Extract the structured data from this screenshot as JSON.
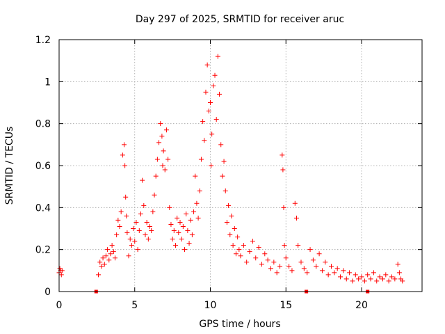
{
  "chart_data": {
    "type": "scatter",
    "title": "Day 297 of 2025, SRMTID for receiver aruc",
    "xlabel": "GPS time / hours",
    "ylabel": "SRMTID / TECUs",
    "xlim": [
      0,
      24
    ],
    "ylim": [
      0,
      1.2
    ],
    "xticks": [
      0,
      5,
      10,
      15,
      20
    ],
    "xtick_labels": [
      "0",
      "5",
      "10",
      "15",
      "20"
    ],
    "yticks": [
      0,
      0.2,
      0.4,
      0.6,
      0.8,
      1,
      1.2
    ],
    "ytick_labels": [
      "0",
      "0.2",
      "0.4",
      "0.6",
      "0.8",
      "1",
      "1.2"
    ],
    "grid": true,
    "marker": "plus",
    "color": "#ff0000",
    "series": [
      {
        "name": "SRMTID",
        "x": [
          0.0,
          0.05,
          0.1,
          0.15,
          0.2,
          2.6,
          2.7,
          2.8,
          2.9,
          3.0,
          3.1,
          3.2,
          3.3,
          3.4,
          3.5,
          3.6,
          3.7,
          3.8,
          3.9,
          4.0,
          4.1,
          4.2,
          4.3,
          4.35,
          4.4,
          4.45,
          4.5,
          4.6,
          4.7,
          4.8,
          4.9,
          5.0,
          5.1,
          5.2,
          5.3,
          5.4,
          5.5,
          5.6,
          5.7,
          5.8,
          5.9,
          6.0,
          6.1,
          6.2,
          6.3,
          6.4,
          6.5,
          6.6,
          6.7,
          6.8,
          6.85,
          6.9,
          7.0,
          7.1,
          7.2,
          7.3,
          7.4,
          7.5,
          7.6,
          7.7,
          7.8,
          7.9,
          8.0,
          8.1,
          8.2,
          8.3,
          8.4,
          8.5,
          8.6,
          8.7,
          8.8,
          8.9,
          9.0,
          9.1,
          9.2,
          9.3,
          9.4,
          9.5,
          9.6,
          9.7,
          9.8,
          9.9,
          10.0,
          10.05,
          10.1,
          10.2,
          10.3,
          10.4,
          10.5,
          10.6,
          10.7,
          10.8,
          10.9,
          11.0,
          11.1,
          11.2,
          11.3,
          11.4,
          11.5,
          11.6,
          11.7,
          11.8,
          11.9,
          12.0,
          12.2,
          12.4,
          12.6,
          12.8,
          13.0,
          13.2,
          13.4,
          13.6,
          13.8,
          14.0,
          14.2,
          14.4,
          14.6,
          14.75,
          14.8,
          14.85,
          14.9,
          15.0,
          15.2,
          15.4,
          15.6,
          15.7,
          15.8,
          16.0,
          16.2,
          16.4,
          16.6,
          16.8,
          17.0,
          17.2,
          17.4,
          17.6,
          17.8,
          18.0,
          18.2,
          18.4,
          18.6,
          18.8,
          19.0,
          19.2,
          19.4,
          19.6,
          19.8,
          20.0,
          20.2,
          20.4,
          20.6,
          20.8,
          21.0,
          21.2,
          21.4,
          21.6,
          21.8,
          22.0,
          22.2,
          22.4,
          22.5,
          22.6,
          22.7
        ],
        "y": [
          0.09,
          0.11,
          0.1,
          0.08,
          0.1,
          0.08,
          0.14,
          0.12,
          0.16,
          0.13,
          0.17,
          0.2,
          0.15,
          0.18,
          0.22,
          0.19,
          0.16,
          0.27,
          0.34,
          0.31,
          0.38,
          0.65,
          0.7,
          0.6,
          0.45,
          0.36,
          0.28,
          0.17,
          0.25,
          0.22,
          0.3,
          0.24,
          0.33,
          0.2,
          0.29,
          0.37,
          0.53,
          0.41,
          0.27,
          0.33,
          0.25,
          0.31,
          0.29,
          0.38,
          0.46,
          0.55,
          0.63,
          0.71,
          0.8,
          0.74,
          0.6,
          0.67,
          0.58,
          0.77,
          0.63,
          0.4,
          0.32,
          0.25,
          0.29,
          0.22,
          0.35,
          0.28,
          0.33,
          0.25,
          0.31,
          0.2,
          0.37,
          0.29,
          0.23,
          0.34,
          0.27,
          0.38,
          0.55,
          0.42,
          0.35,
          0.48,
          0.63,
          0.81,
          0.72,
          0.95,
          1.08,
          0.86,
          0.9,
          0.6,
          0.75,
          0.98,
          1.03,
          0.82,
          1.12,
          0.94,
          0.7,
          0.55,
          0.62,
          0.48,
          0.33,
          0.41,
          0.27,
          0.36,
          0.22,
          0.3,
          0.18,
          0.26,
          0.2,
          0.17,
          0.22,
          0.14,
          0.19,
          0.24,
          0.16,
          0.21,
          0.13,
          0.18,
          0.15,
          0.11,
          0.14,
          0.09,
          0.12,
          0.65,
          0.58,
          0.4,
          0.22,
          0.16,
          0.12,
          0.1,
          0.42,
          0.35,
          0.22,
          0.14,
          0.11,
          0.09,
          0.2,
          0.15,
          0.12,
          0.18,
          0.1,
          0.14,
          0.08,
          0.12,
          0.09,
          0.11,
          0.07,
          0.1,
          0.06,
          0.09,
          0.05,
          0.08,
          0.06,
          0.07,
          0.05,
          0.08,
          0.06,
          0.09,
          0.05,
          0.07,
          0.06,
          0.08,
          0.05,
          0.07,
          0.06,
          0.13,
          0.09,
          0.06,
          0.05
        ]
      }
    ],
    "gap_markers_x": [
      2.45,
      16.35,
      20.4
    ],
    "gap_markers_y": [
      0,
      0,
      0
    ]
  }
}
